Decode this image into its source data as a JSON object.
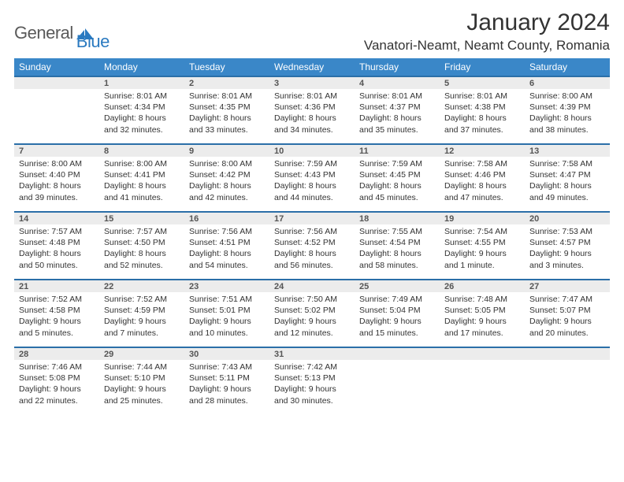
{
  "logo": {
    "text1": "General",
    "text2": "Blue",
    "color1": "#5a5a5a",
    "color2": "#2b7ac0"
  },
  "title": "January 2024",
  "location": "Vanatori-Neamt, Neamt County, Romania",
  "weekdays": [
    "Sunday",
    "Monday",
    "Tuesday",
    "Wednesday",
    "Thursday",
    "Friday",
    "Saturday"
  ],
  "colors": {
    "header_bg": "#3a87c8",
    "header_text": "#ffffff",
    "daynum_bg": "#ececec",
    "daynum_border": "#2b6fa8",
    "body_text": "#333333"
  },
  "weeks": [
    {
      "nums": [
        "",
        "1",
        "2",
        "3",
        "4",
        "5",
        "6"
      ],
      "cells": [
        null,
        {
          "sunrise": "Sunrise: 8:01 AM",
          "sunset": "Sunset: 4:34 PM",
          "day1": "Daylight: 8 hours",
          "day2": "and 32 minutes."
        },
        {
          "sunrise": "Sunrise: 8:01 AM",
          "sunset": "Sunset: 4:35 PM",
          "day1": "Daylight: 8 hours",
          "day2": "and 33 minutes."
        },
        {
          "sunrise": "Sunrise: 8:01 AM",
          "sunset": "Sunset: 4:36 PM",
          "day1": "Daylight: 8 hours",
          "day2": "and 34 minutes."
        },
        {
          "sunrise": "Sunrise: 8:01 AM",
          "sunset": "Sunset: 4:37 PM",
          "day1": "Daylight: 8 hours",
          "day2": "and 35 minutes."
        },
        {
          "sunrise": "Sunrise: 8:01 AM",
          "sunset": "Sunset: 4:38 PM",
          "day1": "Daylight: 8 hours",
          "day2": "and 37 minutes."
        },
        {
          "sunrise": "Sunrise: 8:00 AM",
          "sunset": "Sunset: 4:39 PM",
          "day1": "Daylight: 8 hours",
          "day2": "and 38 minutes."
        }
      ]
    },
    {
      "nums": [
        "7",
        "8",
        "9",
        "10",
        "11",
        "12",
        "13"
      ],
      "cells": [
        {
          "sunrise": "Sunrise: 8:00 AM",
          "sunset": "Sunset: 4:40 PM",
          "day1": "Daylight: 8 hours",
          "day2": "and 39 minutes."
        },
        {
          "sunrise": "Sunrise: 8:00 AM",
          "sunset": "Sunset: 4:41 PM",
          "day1": "Daylight: 8 hours",
          "day2": "and 41 minutes."
        },
        {
          "sunrise": "Sunrise: 8:00 AM",
          "sunset": "Sunset: 4:42 PM",
          "day1": "Daylight: 8 hours",
          "day2": "and 42 minutes."
        },
        {
          "sunrise": "Sunrise: 7:59 AM",
          "sunset": "Sunset: 4:43 PM",
          "day1": "Daylight: 8 hours",
          "day2": "and 44 minutes."
        },
        {
          "sunrise": "Sunrise: 7:59 AM",
          "sunset": "Sunset: 4:45 PM",
          "day1": "Daylight: 8 hours",
          "day2": "and 45 minutes."
        },
        {
          "sunrise": "Sunrise: 7:58 AM",
          "sunset": "Sunset: 4:46 PM",
          "day1": "Daylight: 8 hours",
          "day2": "and 47 minutes."
        },
        {
          "sunrise": "Sunrise: 7:58 AM",
          "sunset": "Sunset: 4:47 PM",
          "day1": "Daylight: 8 hours",
          "day2": "and 49 minutes."
        }
      ]
    },
    {
      "nums": [
        "14",
        "15",
        "16",
        "17",
        "18",
        "19",
        "20"
      ],
      "cells": [
        {
          "sunrise": "Sunrise: 7:57 AM",
          "sunset": "Sunset: 4:48 PM",
          "day1": "Daylight: 8 hours",
          "day2": "and 50 minutes."
        },
        {
          "sunrise": "Sunrise: 7:57 AM",
          "sunset": "Sunset: 4:50 PM",
          "day1": "Daylight: 8 hours",
          "day2": "and 52 minutes."
        },
        {
          "sunrise": "Sunrise: 7:56 AM",
          "sunset": "Sunset: 4:51 PM",
          "day1": "Daylight: 8 hours",
          "day2": "and 54 minutes."
        },
        {
          "sunrise": "Sunrise: 7:56 AM",
          "sunset": "Sunset: 4:52 PM",
          "day1": "Daylight: 8 hours",
          "day2": "and 56 minutes."
        },
        {
          "sunrise": "Sunrise: 7:55 AM",
          "sunset": "Sunset: 4:54 PM",
          "day1": "Daylight: 8 hours",
          "day2": "and 58 minutes."
        },
        {
          "sunrise": "Sunrise: 7:54 AM",
          "sunset": "Sunset: 4:55 PM",
          "day1": "Daylight: 9 hours",
          "day2": "and 1 minute."
        },
        {
          "sunrise": "Sunrise: 7:53 AM",
          "sunset": "Sunset: 4:57 PM",
          "day1": "Daylight: 9 hours",
          "day2": "and 3 minutes."
        }
      ]
    },
    {
      "nums": [
        "21",
        "22",
        "23",
        "24",
        "25",
        "26",
        "27"
      ],
      "cells": [
        {
          "sunrise": "Sunrise: 7:52 AM",
          "sunset": "Sunset: 4:58 PM",
          "day1": "Daylight: 9 hours",
          "day2": "and 5 minutes."
        },
        {
          "sunrise": "Sunrise: 7:52 AM",
          "sunset": "Sunset: 4:59 PM",
          "day1": "Daylight: 9 hours",
          "day2": "and 7 minutes."
        },
        {
          "sunrise": "Sunrise: 7:51 AM",
          "sunset": "Sunset: 5:01 PM",
          "day1": "Daylight: 9 hours",
          "day2": "and 10 minutes."
        },
        {
          "sunrise": "Sunrise: 7:50 AM",
          "sunset": "Sunset: 5:02 PM",
          "day1": "Daylight: 9 hours",
          "day2": "and 12 minutes."
        },
        {
          "sunrise": "Sunrise: 7:49 AM",
          "sunset": "Sunset: 5:04 PM",
          "day1": "Daylight: 9 hours",
          "day2": "and 15 minutes."
        },
        {
          "sunrise": "Sunrise: 7:48 AM",
          "sunset": "Sunset: 5:05 PM",
          "day1": "Daylight: 9 hours",
          "day2": "and 17 minutes."
        },
        {
          "sunrise": "Sunrise: 7:47 AM",
          "sunset": "Sunset: 5:07 PM",
          "day1": "Daylight: 9 hours",
          "day2": "and 20 minutes."
        }
      ]
    },
    {
      "nums": [
        "28",
        "29",
        "30",
        "31",
        "",
        "",
        ""
      ],
      "cells": [
        {
          "sunrise": "Sunrise: 7:46 AM",
          "sunset": "Sunset: 5:08 PM",
          "day1": "Daylight: 9 hours",
          "day2": "and 22 minutes."
        },
        {
          "sunrise": "Sunrise: 7:44 AM",
          "sunset": "Sunset: 5:10 PM",
          "day1": "Daylight: 9 hours",
          "day2": "and 25 minutes."
        },
        {
          "sunrise": "Sunrise: 7:43 AM",
          "sunset": "Sunset: 5:11 PM",
          "day1": "Daylight: 9 hours",
          "day2": "and 28 minutes."
        },
        {
          "sunrise": "Sunrise: 7:42 AM",
          "sunset": "Sunset: 5:13 PM",
          "day1": "Daylight: 9 hours",
          "day2": "and 30 minutes."
        },
        null,
        null,
        null
      ]
    }
  ]
}
